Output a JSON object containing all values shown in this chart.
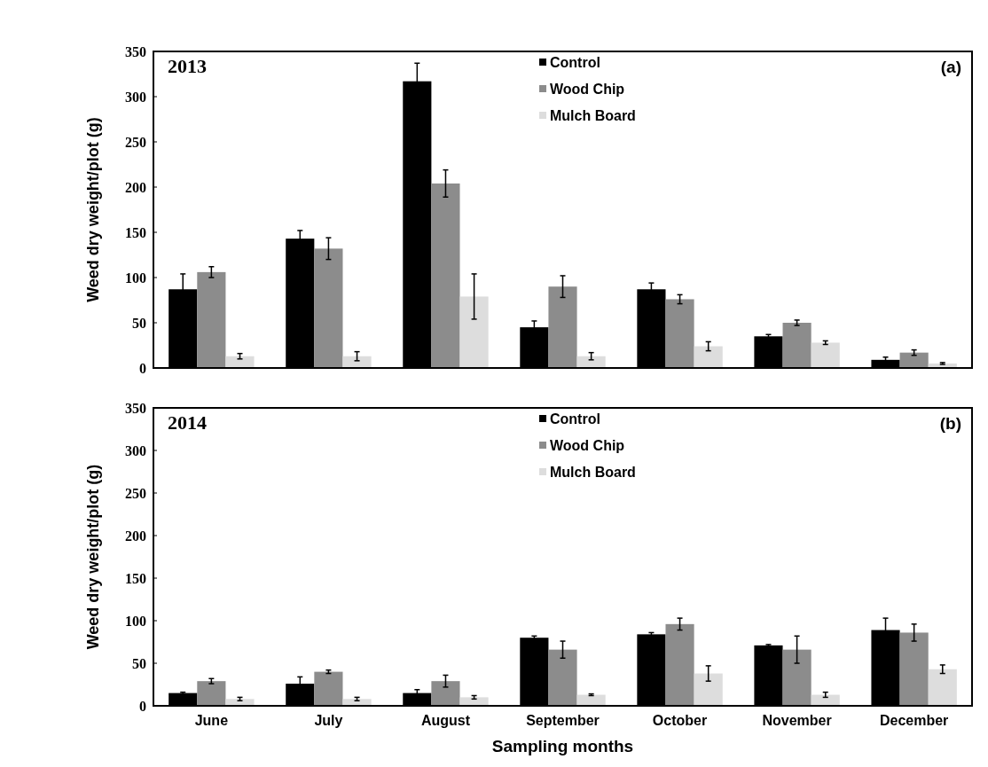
{
  "chart_data": [
    {
      "type": "bar",
      "title": "2013",
      "annotations": [
        "(a)"
      ],
      "ylabel": "Weed dry weight/plot (g)",
      "categories": [
        null,
        null,
        null,
        null,
        null,
        null,
        null
      ],
      "ylim": [
        0,
        350
      ],
      "yticks": [
        0,
        50,
        100,
        150,
        200,
        250,
        300,
        350
      ],
      "tick_labels": "y",
      "legend": "top",
      "grid": false,
      "series": [
        {
          "name": "Control",
          "color": "#000000",
          "values": [
            87,
            143,
            317,
            45,
            87,
            35,
            9
          ],
          "errors": [
            17,
            9,
            20,
            7,
            7,
            2,
            3
          ]
        },
        {
          "name": "Wood Chip",
          "color": "#8c8c8c",
          "values": [
            106,
            132,
            204,
            90,
            76,
            50,
            17
          ],
          "errors": [
            6,
            12,
            15,
            12,
            5,
            3,
            3
          ]
        },
        {
          "name": "Mulch Board",
          "color": "#dddddd",
          "values": [
            13,
            13,
            79,
            13,
            24,
            28,
            5
          ],
          "errors": [
            3,
            5,
            25,
            4,
            5,
            2,
            1
          ]
        }
      ]
    },
    {
      "type": "bar",
      "title": "2014",
      "annotations": [
        "(b)"
      ],
      "ylabel": "Weed dry weight/plot (g)",
      "xlabel": "Sampling months",
      "categories": [
        "June",
        "July",
        "August",
        "September",
        "October",
        "November",
        "December"
      ],
      "ylim": [
        0,
        350
      ],
      "yticks": [
        0,
        50,
        100,
        150,
        200,
        250,
        300,
        350
      ],
      "legend": "top",
      "grid": false,
      "series": [
        {
          "name": "Control",
          "color": "#000000",
          "values": [
            15,
            26,
            15,
            80,
            84,
            71,
            89
          ],
          "errors": [
            1,
            8,
            4,
            2,
            2,
            1,
            14
          ]
        },
        {
          "name": "Wood Chip",
          "color": "#8c8c8c",
          "values": [
            29,
            40,
            29,
            66,
            96,
            66,
            86
          ],
          "errors": [
            3,
            2,
            7,
            10,
            7,
            16,
            10
          ]
        },
        {
          "name": "Mulch Board",
          "color": "#dddddd",
          "values": [
            8,
            8,
            10,
            13,
            38,
            13,
            43
          ],
          "errors": [
            2,
            2,
            2,
            1,
            9,
            3,
            5
          ]
        }
      ]
    }
  ]
}
